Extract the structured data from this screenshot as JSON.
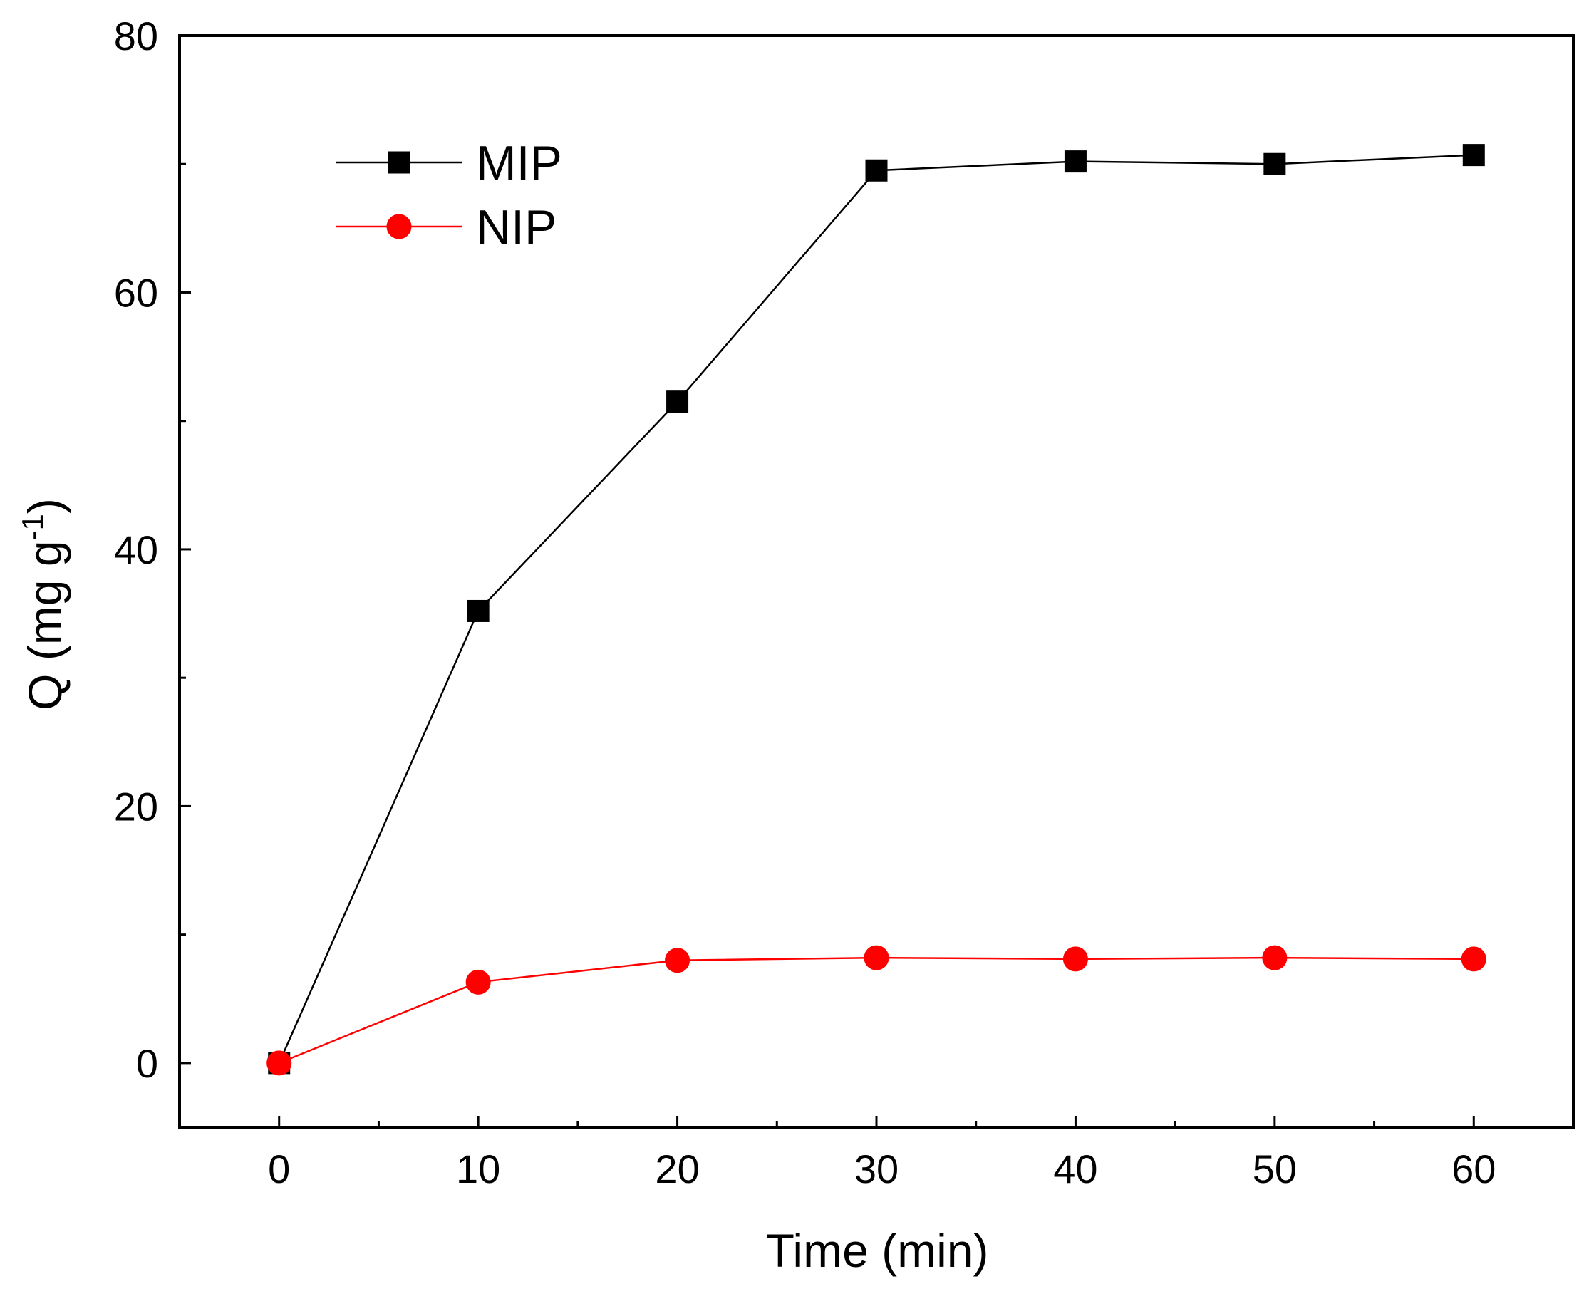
{
  "chart_data": {
    "type": "line",
    "title": "",
    "xlabel": "Time (min)",
    "ylabel": "Q (mg g",
    "ylabel_superscript": "-1",
    "ylabel_close": ")",
    "xlim": [
      -5,
      65
    ],
    "ylim": [
      -5,
      80
    ],
    "x_ticks": [
      0,
      10,
      20,
      30,
      40,
      50,
      60
    ],
    "x_tick_labels": [
      "0",
      "10",
      "20",
      "30",
      "40",
      "50",
      "60"
    ],
    "x_minor_ticks": [
      5,
      15,
      25,
      35,
      45,
      55
    ],
    "y_ticks": [
      0,
      20,
      40,
      60,
      80
    ],
    "y_tick_labels": [
      "0",
      "20",
      "40",
      "60",
      "80"
    ],
    "y_minor_ticks": [
      10,
      30,
      50,
      70
    ],
    "grid": false,
    "legend_position": "top-left",
    "x": [
      0,
      10,
      20,
      30,
      40,
      50,
      60
    ],
    "series": [
      {
        "name": "MIP",
        "values": [
          0,
          35.2,
          51.5,
          69.5,
          70.2,
          70.0,
          70.7
        ],
        "color": "#000000",
        "marker": "square"
      },
      {
        "name": "NIP",
        "values": [
          0,
          6.3,
          8.0,
          8.2,
          8.1,
          8.2,
          8.1
        ],
        "color": "#ff0000",
        "marker": "circle"
      }
    ]
  }
}
